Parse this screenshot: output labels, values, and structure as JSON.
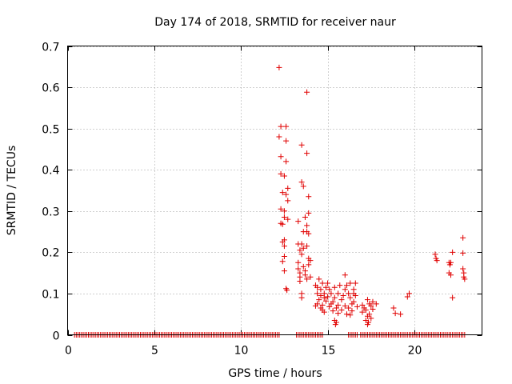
{
  "chart_data": {
    "type": "scatter",
    "title": "Day 174 of 2018, SRMTID for receiver naur",
    "xlabel": "GPS time / hours",
    "ylabel": "SRMTID / TECUs",
    "xlim": [
      0,
      23.9
    ],
    "ylim": [
      0,
      0.7
    ],
    "x_ticks": [
      0,
      5,
      10,
      15,
      20
    ],
    "y_ticks": [
      0,
      0.1,
      0.2,
      0.3,
      0.4,
      0.5,
      0.6,
      0.7
    ],
    "x_tick_labels": [
      "0",
      "5",
      "10",
      "15",
      "20"
    ],
    "y_tick_labels": [
      "0",
      "0.1",
      "0.2",
      "0.3",
      "0.4",
      "0.5",
      "0.6",
      "0.7"
    ],
    "grid": true,
    "marker": "+",
    "series": [
      {
        "name": "naur",
        "color": "#e00000",
        "points": [
          [
            12.2,
            0.648
          ],
          [
            13.8,
            0.588
          ],
          [
            12.3,
            0.505
          ],
          [
            12.6,
            0.505
          ],
          [
            12.2,
            0.48
          ],
          [
            12.6,
            0.47
          ],
          [
            13.5,
            0.46
          ],
          [
            13.8,
            0.44
          ],
          [
            12.3,
            0.432
          ],
          [
            12.6,
            0.42
          ],
          [
            12.3,
            0.39
          ],
          [
            12.5,
            0.385
          ],
          [
            13.5,
            0.37
          ],
          [
            13.6,
            0.36
          ],
          [
            12.7,
            0.355
          ],
          [
            12.4,
            0.345
          ],
          [
            12.6,
            0.34
          ],
          [
            13.9,
            0.335
          ],
          [
            12.7,
            0.325
          ],
          [
            12.3,
            0.305
          ],
          [
            12.5,
            0.3
          ],
          [
            13.9,
            0.295
          ],
          [
            12.5,
            0.285
          ],
          [
            13.7,
            0.285
          ],
          [
            12.7,
            0.28
          ],
          [
            13.3,
            0.275
          ],
          [
            12.3,
            0.27
          ],
          [
            12.4,
            0.268
          ],
          [
            13.8,
            0.265
          ],
          [
            13.6,
            0.25
          ],
          [
            13.8,
            0.25
          ],
          [
            13.9,
            0.245
          ],
          [
            12.5,
            0.23
          ],
          [
            12.4,
            0.225
          ],
          [
            13.3,
            0.22
          ],
          [
            13.5,
            0.22
          ],
          [
            12.5,
            0.215
          ],
          [
            13.8,
            0.215
          ],
          [
            13.6,
            0.21
          ],
          [
            13.4,
            0.205
          ],
          [
            13.5,
            0.195
          ],
          [
            12.5,
            0.19
          ],
          [
            13.9,
            0.185
          ],
          [
            12.4,
            0.178
          ],
          [
            14.0,
            0.18
          ],
          [
            13.3,
            0.175
          ],
          [
            13.9,
            0.17
          ],
          [
            13.6,
            0.165
          ],
          [
            13.3,
            0.16
          ],
          [
            12.5,
            0.155
          ],
          [
            13.7,
            0.155
          ],
          [
            13.4,
            0.15
          ],
          [
            13.7,
            0.145
          ],
          [
            13.4,
            0.14
          ],
          [
            14.0,
            0.14
          ],
          [
            13.8,
            0.135
          ],
          [
            13.4,
            0.13
          ],
          [
            14.5,
            0.135
          ],
          [
            16.0,
            0.145
          ],
          [
            14.3,
            0.12
          ],
          [
            14.6,
            0.11
          ],
          [
            14.7,
            0.125
          ],
          [
            15.0,
            0.125
          ],
          [
            15.7,
            0.12
          ],
          [
            16.1,
            0.12
          ],
          [
            16.3,
            0.125
          ],
          [
            16.6,
            0.125
          ],
          [
            12.6,
            0.112
          ],
          [
            12.65,
            0.108
          ],
          [
            14.4,
            0.115
          ],
          [
            14.9,
            0.115
          ],
          [
            15.1,
            0.11
          ],
          [
            15.4,
            0.115
          ],
          [
            16.0,
            0.11
          ],
          [
            16.5,
            0.11
          ],
          [
            13.5,
            0.1
          ],
          [
            14.4,
            0.1
          ],
          [
            14.8,
            0.1
          ],
          [
            15.2,
            0.1
          ],
          [
            15.6,
            0.1
          ],
          [
            16.2,
            0.1
          ],
          [
            16.5,
            0.1
          ],
          [
            19.7,
            0.1
          ],
          [
            13.5,
            0.09
          ],
          [
            14.6,
            0.095
          ],
          [
            14.8,
            0.09
          ],
          [
            15.0,
            0.092
          ],
          [
            15.4,
            0.09
          ],
          [
            15.9,
            0.095
          ],
          [
            16.3,
            0.09
          ],
          [
            16.6,
            0.095
          ],
          [
            19.6,
            0.092
          ],
          [
            14.5,
            0.085
          ],
          [
            14.9,
            0.082
          ],
          [
            15.3,
            0.08
          ],
          [
            15.8,
            0.085
          ],
          [
            16.5,
            0.08
          ],
          [
            17.3,
            0.085
          ],
          [
            17.6,
            0.08
          ],
          [
            14.4,
            0.075
          ],
          [
            14.7,
            0.072
          ],
          [
            15.2,
            0.075
          ],
          [
            15.6,
            0.072
          ],
          [
            16.0,
            0.07
          ],
          [
            16.4,
            0.075
          ],
          [
            17.0,
            0.072
          ],
          [
            17.4,
            0.075
          ],
          [
            17.8,
            0.075
          ],
          [
            14.3,
            0.07
          ],
          [
            14.6,
            0.065
          ],
          [
            15.1,
            0.068
          ],
          [
            15.5,
            0.065
          ],
          [
            16.2,
            0.065
          ],
          [
            16.7,
            0.068
          ],
          [
            17.1,
            0.065
          ],
          [
            17.5,
            0.07
          ],
          [
            18.8,
            0.065
          ],
          [
            14.7,
            0.06
          ],
          [
            15.3,
            0.058
          ],
          [
            15.8,
            0.06
          ],
          [
            16.4,
            0.058
          ],
          [
            17.2,
            0.06
          ],
          [
            17.6,
            0.062
          ],
          [
            14.8,
            0.055
          ],
          [
            15.6,
            0.052
          ],
          [
            16.1,
            0.05
          ],
          [
            17.0,
            0.055
          ],
          [
            17.4,
            0.05
          ],
          [
            18.9,
            0.052
          ],
          [
            19.2,
            0.05
          ],
          [
            16.3,
            0.048
          ],
          [
            17.3,
            0.045
          ],
          [
            17.5,
            0.04
          ],
          [
            15.4,
            0.035
          ],
          [
            17.2,
            0.035
          ],
          [
            15.5,
            0.03
          ],
          [
            17.35,
            0.03
          ],
          [
            15.45,
            0.025
          ],
          [
            17.3,
            0.025
          ],
          [
            21.2,
            0.195
          ],
          [
            21.25,
            0.185
          ],
          [
            21.3,
            0.18
          ],
          [
            22.0,
            0.175
          ],
          [
            22.1,
            0.175
          ],
          [
            22.05,
            0.17
          ],
          [
            22.2,
            0.2
          ],
          [
            22.0,
            0.15
          ],
          [
            22.1,
            0.145
          ],
          [
            22.2,
            0.09
          ],
          [
            22.8,
            0.235
          ],
          [
            22.8,
            0.198
          ],
          [
            22.8,
            0.16
          ],
          [
            22.85,
            0.15
          ],
          [
            22.85,
            0.14
          ],
          [
            22.9,
            0.135
          ]
        ],
        "zero_intervals": [
          [
            0.4,
            12.2
          ],
          [
            13.2,
            14.7
          ],
          [
            16.2,
            16.7
          ],
          [
            16.9,
            22.9
          ]
        ],
        "zero_step_hours": 0.1
      }
    ]
  }
}
